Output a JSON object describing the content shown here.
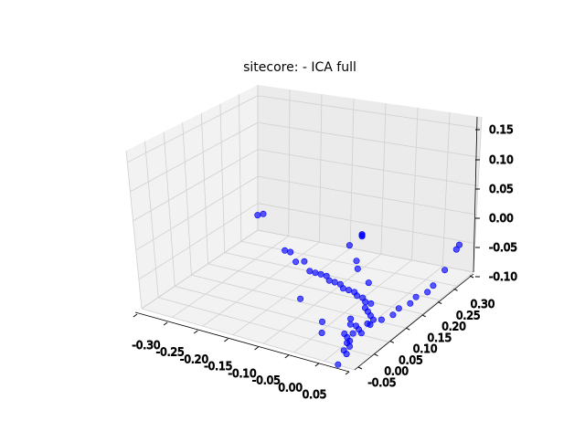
{
  "chart_data": {
    "type": "scatter",
    "title": "sitecore: - ICA full",
    "x_ticks": [
      "-0.30",
      "-0.25",
      "-0.20",
      "-0.15",
      "-0.10",
      "-0.05",
      "0.00",
      "0.05"
    ],
    "y_ticks": [
      "-0.05",
      "0.00",
      "0.05",
      "0.10",
      "0.15",
      "0.20",
      "0.25",
      "0.30"
    ],
    "z_ticks": [
      "-0.10",
      "-0.05",
      "0.00",
      "0.05",
      "0.10",
      "0.15"
    ],
    "xlim": [
      -0.32,
      0.06
    ],
    "ylim": [
      -0.08,
      0.32
    ],
    "zlim": [
      -0.11,
      0.16
    ],
    "grid": true,
    "point_color": "#0000ff",
    "points": [
      {
        "x": -0.31,
        "y": 0.3,
        "z": -0.07
      },
      {
        "x": -0.305,
        "y": 0.31,
        "z": -0.07
      },
      {
        "x": -0.22,
        "y": 0.22,
        "z": -0.08
      },
      {
        "x": -0.21,
        "y": 0.22,
        "z": -0.08
      },
      {
        "x": -0.19,
        "y": 0.2,
        "z": -0.085
      },
      {
        "x": -0.18,
        "y": 0.21,
        "z": -0.085
      },
      {
        "x": -0.16,
        "y": 0.19,
        "z": -0.09
      },
      {
        "x": -0.15,
        "y": 0.19,
        "z": -0.09
      },
      {
        "x": -0.14,
        "y": 0.19,
        "z": -0.09
      },
      {
        "x": -0.13,
        "y": 0.19,
        "z": -0.09
      },
      {
        "x": -0.12,
        "y": 0.18,
        "z": -0.092
      },
      {
        "x": -0.11,
        "y": 0.18,
        "z": -0.092
      },
      {
        "x": -0.1,
        "y": 0.18,
        "z": -0.093
      },
      {
        "x": -0.09,
        "y": 0.17,
        "z": -0.094
      },
      {
        "x": -0.08,
        "y": 0.17,
        "z": -0.094
      },
      {
        "x": -0.07,
        "y": 0.17,
        "z": -0.095
      },
      {
        "x": -0.06,
        "y": 0.16,
        "z": -0.095
      },
      {
        "x": -0.05,
        "y": 0.16,
        "z": -0.096
      },
      {
        "x": -0.04,
        "y": 0.15,
        "z": -0.097
      },
      {
        "x": -0.03,
        "y": 0.15,
        "z": -0.097
      },
      {
        "x": -0.03,
        "y": 0.13,
        "z": -0.098
      },
      {
        "x": -0.02,
        "y": 0.12,
        "z": -0.098
      },
      {
        "x": -0.01,
        "y": 0.11,
        "z": -0.099
      },
      {
        "x": 0.0,
        "y": 0.1,
        "z": -0.1
      },
      {
        "x": 0.0,
        "y": 0.08,
        "z": -0.1
      },
      {
        "x": -0.01,
        "y": 0.06,
        "z": -0.1
      },
      {
        "x": 0.0,
        "y": 0.05,
        "z": -0.1
      },
      {
        "x": 0.01,
        "y": 0.04,
        "z": -0.1
      },
      {
        "x": 0.0,
        "y": 0.03,
        "z": -0.1
      },
      {
        "x": -0.01,
        "y": 0.02,
        "z": -0.1
      },
      {
        "x": 0.0,
        "y": 0.01,
        "z": -0.1
      },
      {
        "x": 0.01,
        "y": 0.0,
        "z": -0.1
      },
      {
        "x": 0.01,
        "y": -0.01,
        "z": -0.1
      },
      {
        "x": 0.02,
        "y": -0.02,
        "z": -0.1
      },
      {
        "x": 0.02,
        "y": -0.04,
        "z": -0.1
      },
      {
        "x": 0.03,
        "y": -0.05,
        "z": -0.1
      },
      {
        "x": 0.01,
        "y": 0.07,
        "z": -0.095
      },
      {
        "x": 0.02,
        "y": 0.09,
        "z": -0.09
      },
      {
        "x": 0.03,
        "y": 0.11,
        "z": -0.085
      },
      {
        "x": 0.03,
        "y": 0.13,
        "z": -0.08
      },
      {
        "x": 0.04,
        "y": 0.15,
        "z": -0.075
      },
      {
        "x": 0.04,
        "y": 0.17,
        "z": -0.07
      },
      {
        "x": 0.05,
        "y": 0.19,
        "z": -0.065
      },
      {
        "x": 0.05,
        "y": 0.21,
        "z": -0.06
      },
      {
        "x": 0.05,
        "y": 0.25,
        "z": -0.045
      },
      {
        "x": 0.05,
        "y": 0.29,
        "z": -0.02
      },
      {
        "x": 0.05,
        "y": 0.3,
        "z": -0.015
      },
      {
        "x": -0.02,
        "y": 0.1,
        "z": 0.06
      },
      {
        "x": -0.02,
        "y": 0.1,
        "z": 0.058
      },
      {
        "x": -0.02,
        "y": 0.1,
        "z": 0.056
      },
      {
        "x": -0.03,
        "y": 0.1,
        "z": 0.005
      },
      {
        "x": -0.12,
        "y": 0.25,
        "z": -0.05
      },
      {
        "x": -0.09,
        "y": 0.22,
        "z": -0.075
      },
      {
        "x": -0.06,
        "y": 0.2,
        "z": -0.085
      },
      {
        "x": -0.13,
        "y": 0.1,
        "z": -0.1
      },
      {
        "x": -0.06,
        "y": 0.04,
        "z": -0.1
      },
      {
        "x": -0.04,
        "y": 0.0,
        "z": -0.1
      },
      {
        "x": 0.02,
        "y": -0.06,
        "z": -0.12
      },
      {
        "x": -0.02,
        "y": 0.06,
        "z": -0.1
      },
      {
        "x": -0.03,
        "y": 0.08,
        "z": -0.1
      }
    ]
  }
}
